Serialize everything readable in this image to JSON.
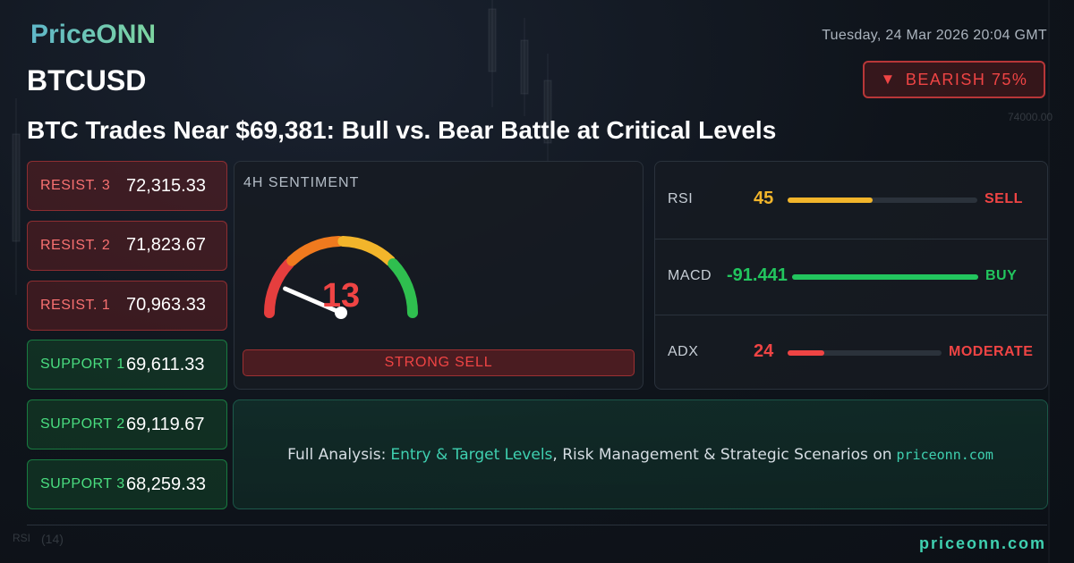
{
  "header": {
    "logo": "PriceONN",
    "datetime": "Tuesday, 24 Mar 2026 20:04 GMT",
    "symbol": "BTCUSD",
    "badge": "BEARISH 75%",
    "headline": "BTC Trades Near $69,381: Bull vs. Bear Battle at Critical Levels"
  },
  "background": {
    "price_label": "74000.00",
    "indicator_name": "RSI",
    "indicator_period": "(14)"
  },
  "levels": [
    {
      "label": "RESIST. 3",
      "value": "72,315.33",
      "kind": "resistance"
    },
    {
      "label": "RESIST. 2",
      "value": "71,823.67",
      "kind": "resistance"
    },
    {
      "label": "RESIST. 1",
      "value": "70,963.33",
      "kind": "resistance"
    },
    {
      "label": "SUPPORT 1",
      "value": "69,611.33",
      "kind": "support"
    },
    {
      "label": "SUPPORT 2",
      "value": "69,119.67",
      "kind": "support"
    },
    {
      "label": "SUPPORT 3",
      "value": "68,259.33",
      "kind": "support"
    }
  ],
  "sentiment": {
    "title": "4H SENTIMENT",
    "score": 13,
    "range": [
      0,
      100
    ],
    "verdict": "STRONG SELL"
  },
  "indicators": {
    "range": [
      0,
      100
    ],
    "rows": [
      {
        "name": "RSI",
        "value": 45,
        "signal": "SELL",
        "color": "#f2b52b",
        "signal_color": "#ef4444"
      },
      {
        "name": "MACD",
        "value": -91.441,
        "signal": "BUY",
        "color": "#22c55e",
        "signal_color": "#22c55e"
      },
      {
        "name": "ADX",
        "value": 24,
        "signal": "MODERATE",
        "color": "#ef4444",
        "signal_color": "#ef4444"
      }
    ]
  },
  "cta": {
    "lead": "Full Analysis:",
    "highlight": "Entry & Target Levels",
    "rest": ", Risk Management & Strategic Scenarios on",
    "site": "priceonn.com"
  },
  "footer": {
    "site": "priceonn.com"
  }
}
